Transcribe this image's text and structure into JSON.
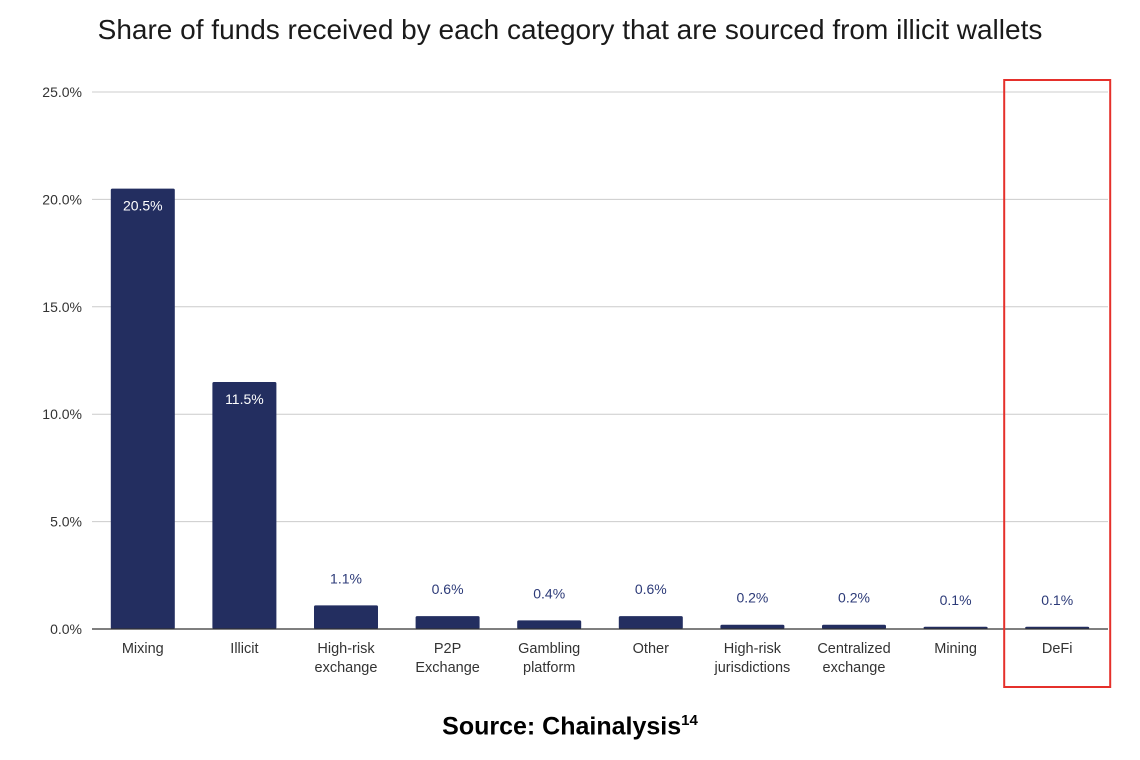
{
  "chart_data": {
    "type": "bar",
    "title": "Share of funds received by each category that are sourced from illicit wallets",
    "xlabel": "",
    "ylabel": "",
    "categories": [
      "Mixing",
      "Illicit",
      "High-risk exchange",
      "P2P Exchange",
      "Gambling platform",
      "Other",
      "High-risk jurisdictions",
      "Centralized exchange",
      "Mining",
      "DeFi"
    ],
    "category_lines": [
      [
        "Mixing"
      ],
      [
        "Illicit"
      ],
      [
        "High-risk",
        "exchange"
      ],
      [
        "P2P",
        "Exchange"
      ],
      [
        "Gambling",
        "platform"
      ],
      [
        "Other"
      ],
      [
        "High-risk",
        "jurisdictions"
      ],
      [
        "Centralized",
        "exchange"
      ],
      [
        "Mining"
      ],
      [
        "DeFi"
      ]
    ],
    "values": [
      20.5,
      11.5,
      1.1,
      0.6,
      0.4,
      0.6,
      0.2,
      0.2,
      0.1,
      0.1
    ],
    "data_labels": [
      "20.5%",
      "11.5%",
      "1.1%",
      "0.6%",
      "0.4%",
      "0.6%",
      "0.2%",
      "0.2%",
      "0.1%",
      "0.1%"
    ],
    "ylim": [
      0,
      25
    ],
    "yticks": [
      0,
      5,
      10,
      15,
      20,
      25
    ],
    "ytick_labels": [
      "0.0%",
      "5.0%",
      "10.0%",
      "15.0%",
      "20.0%",
      "25.0%"
    ],
    "grid": true,
    "legend": "none",
    "highlighted_category": "DeFi",
    "colors": {
      "bar": "#232e60",
      "label_inside": "#ffffff",
      "label_outside": "#2c3a78",
      "grid": "#cccccc",
      "highlight_box": "#e5302b"
    }
  },
  "source": {
    "text": "Source: Chainalysis",
    "superscript": "14"
  }
}
